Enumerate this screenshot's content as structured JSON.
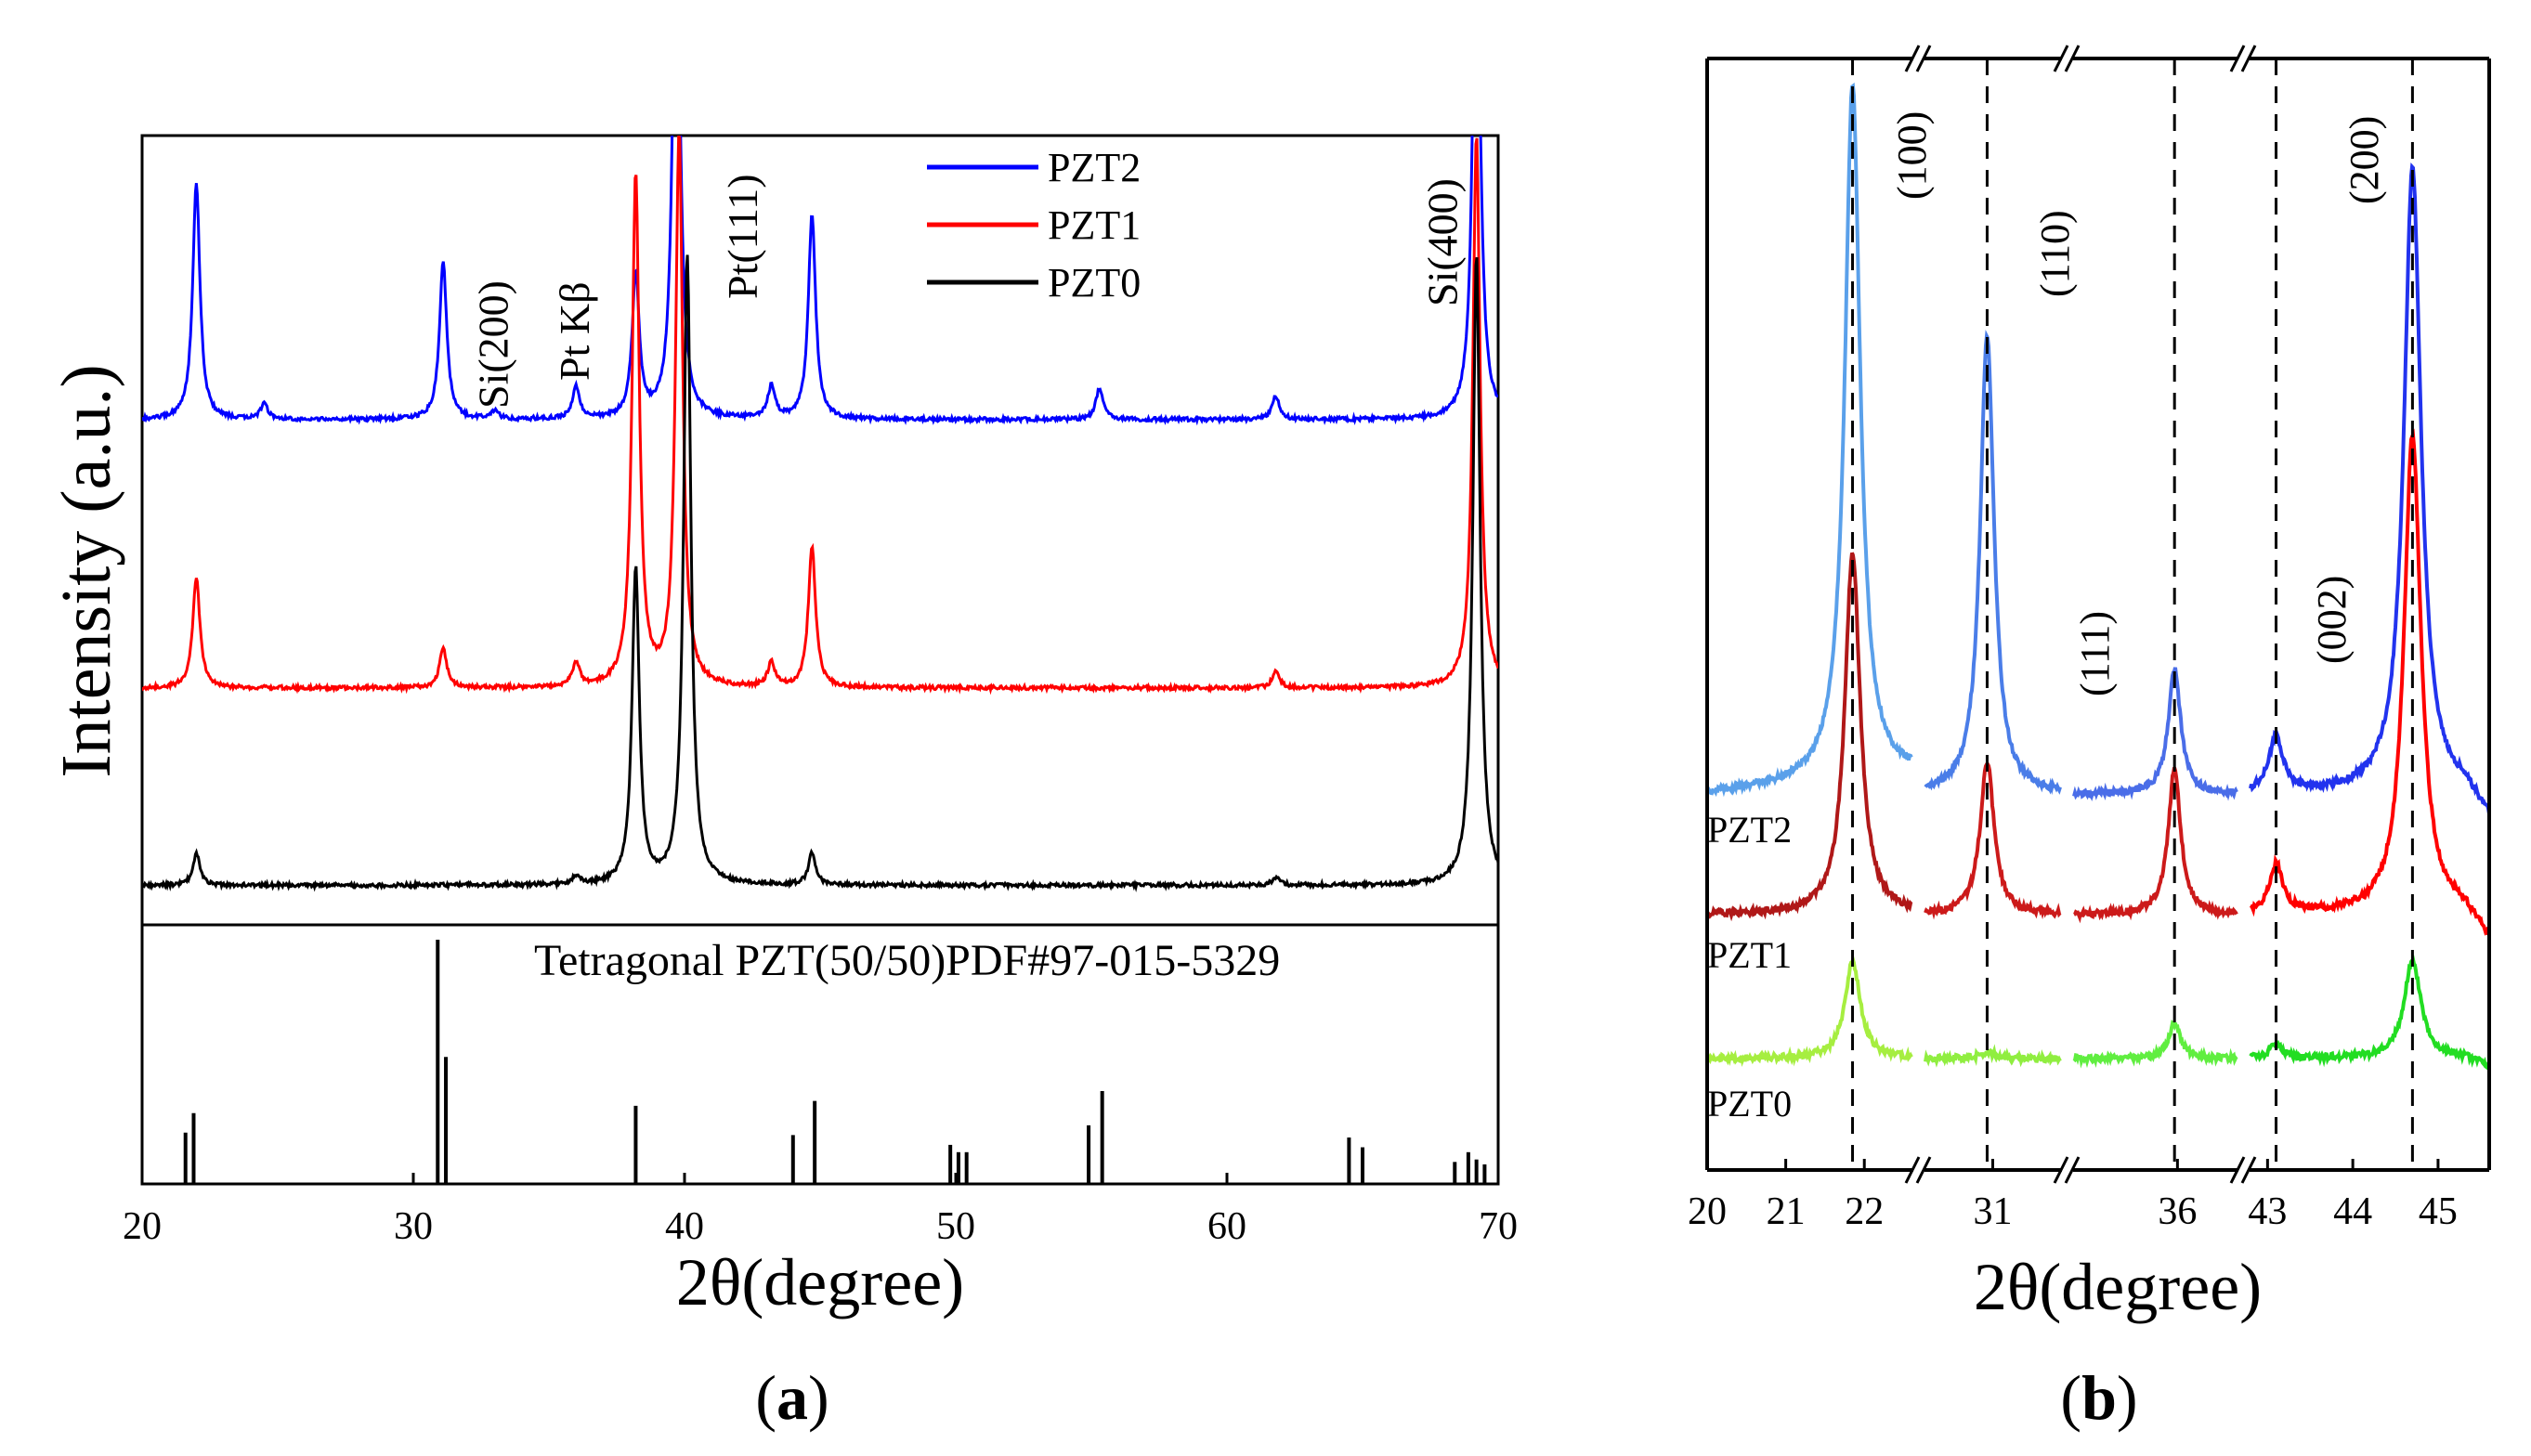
{
  "chart_data": [
    {
      "type": "line",
      "panel": "a",
      "panel_label": "a",
      "xlabel": "2θ(degree)",
      "ylabel": "Intensity (a.u.)",
      "xlim": [
        20,
        70
      ],
      "xticks": [
        "20",
        "30",
        "40",
        "50",
        "60",
        "70"
      ],
      "legend_position": "top-center",
      "series": [
        {
          "name": "PZT2",
          "color": "#0000ff",
          "offset": 0.64,
          "peaks": [
            [
              22.0,
              0.3
            ],
            [
              24.5,
              0.02
            ],
            [
              31.1,
              0.2
            ],
            [
              33.0,
              0.01
            ],
            [
              36.0,
              0.04
            ],
            [
              38.2,
              0.18
            ],
            [
              39.7,
              0.7
            ],
            [
              43.2,
              0.04
            ],
            [
              44.7,
              0.26
            ],
            [
              55.3,
              0.04
            ],
            [
              61.8,
              0.03
            ],
            [
              69.2,
              0.7
            ]
          ]
        },
        {
          "name": "PZT1",
          "color": "#ff0000",
          "offset": 0.3,
          "peaks": [
            [
              22.0,
              0.14
            ],
            [
              31.1,
              0.05
            ],
            [
              36.0,
              0.03
            ],
            [
              38.2,
              0.65
            ],
            [
              39.8,
              0.7
            ],
            [
              43.2,
              0.03
            ],
            [
              44.7,
              0.18
            ],
            [
              61.8,
              0.02
            ],
            [
              69.2,
              0.7
            ]
          ]
        },
        {
          "name": "PZT0",
          "color": "#000000",
          "offset": 0.05,
          "peaks": [
            [
              22.0,
              0.04
            ],
            [
              36.0,
              0.01
            ],
            [
              38.2,
              0.4
            ],
            [
              40.1,
              0.8
            ],
            [
              44.7,
              0.04
            ],
            [
              61.8,
              0.01
            ],
            [
              69.2,
              0.8
            ]
          ]
        }
      ],
      "annotations": [
        {
          "text": "Si(200)",
          "x": 33.0
        },
        {
          "text": "Pt Kβ",
          "x": 36.0
        },
        {
          "text": "Pt(111)",
          "x": 42.2
        },
        {
          "text": "Si(400)",
          "x": 68.0
        }
      ],
      "reference": {
        "label": "Tetragonal PZT(50/50)PDF#97-015-5329",
        "lines": [
          [
            21.6,
            0.21
          ],
          [
            21.9,
            0.29
          ],
          [
            30.9,
            1.0
          ],
          [
            31.2,
            0.52
          ],
          [
            38.2,
            0.32
          ],
          [
            44.0,
            0.2
          ],
          [
            44.8,
            0.34
          ],
          [
            49.8,
            0.16
          ],
          [
            50.1,
            0.13
          ],
          [
            50.4,
            0.13
          ],
          [
            54.9,
            0.24
          ],
          [
            55.4,
            0.38
          ],
          [
            64.5,
            0.19
          ],
          [
            65.0,
            0.15
          ],
          [
            68.4,
            0.09
          ],
          [
            68.9,
            0.13
          ],
          [
            69.2,
            0.1
          ],
          [
            69.5,
            0.08
          ]
        ]
      }
    },
    {
      "type": "line",
      "panel": "b",
      "panel_label": "b",
      "xlabel": "2θ(degree)",
      "ylabel": "",
      "segments": [
        {
          "xlim": [
            20,
            22.6
          ],
          "xticks": [
            "20",
            "21",
            "22"
          ],
          "tick_values": [
            20,
            21,
            22
          ]
        },
        {
          "xlim": [
            30.4,
            31.6
          ],
          "xticks": [
            "31"
          ],
          "tick_values": [
            31
          ]
        },
        {
          "xlim": [
            35.3,
            36.4
          ],
          "xticks": [
            "36"
          ],
          "tick_values": [
            36
          ]
        },
        {
          "xlim": [
            42.8,
            45.6
          ],
          "xticks": [
            "43",
            "44",
            "45"
          ],
          "tick_values": [
            43,
            44,
            45
          ]
        }
      ],
      "reference_lines": [
        21.85,
        30.95,
        35.98,
        43.1,
        44.7
      ],
      "peak_labels": [
        "(100)",
        "(110)",
        "(111)",
        "(002)",
        "(200)"
      ],
      "series": [
        {
          "name": "PZT2",
          "colors": [
            "#5aa0ea",
            "#4a7de8",
            "#4a6de8",
            "#2233ee"
          ],
          "values": {
            "(100)": 1.0,
            "(110)": 0.66,
            "(111)": 0.18,
            "(002)": 0.08,
            "(200)": 0.9
          }
        },
        {
          "name": "PZT1",
          "colors": [
            "#b01818",
            "#cc1a1a",
            "#cc1a1a",
            "#ff0000"
          ],
          "values": {
            "(100)": 0.52,
            "(110)": 0.22,
            "(111)": 0.21,
            "(002)": 0.07,
            "(200)": 0.69
          }
        },
        {
          "name": "PZT0",
          "colors": [
            "#a6ee40",
            "#90ee40",
            "#60ee40",
            "#22dd22"
          ],
          "values": {
            "(100)": 0.14,
            "(110)": 0.01,
            "(111)": 0.05,
            "(002)": 0.02,
            "(200)": 0.14
          }
        }
      ]
    }
  ]
}
